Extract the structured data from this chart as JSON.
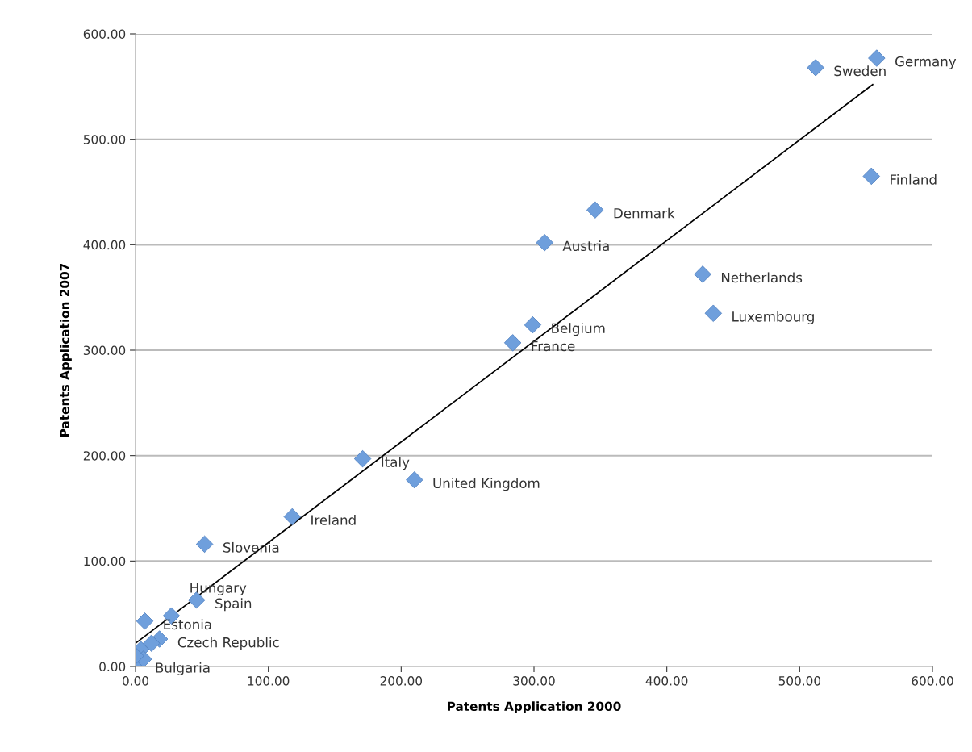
{
  "chart_data": {
    "type": "scatter",
    "xlabel": "Patents Application 2000",
    "ylabel": "Patents Application 2007",
    "xlim": [
      0,
      600
    ],
    "ylim": [
      0,
      600
    ],
    "xticks": [
      {
        "value": 0,
        "label": "0.00"
      },
      {
        "value": 100,
        "label": "100.00"
      },
      {
        "value": 200,
        "label": "200.00"
      },
      {
        "value": 300,
        "label": "300.00"
      },
      {
        "value": 400,
        "label": "400.00"
      },
      {
        "value": 500,
        "label": "500.00"
      },
      {
        "value": 600,
        "label": "600.00"
      }
    ],
    "yticks": [
      {
        "value": 0,
        "label": "0.00"
      },
      {
        "value": 100,
        "label": "100.00"
      },
      {
        "value": 200,
        "label": "200.00"
      },
      {
        "value": 300,
        "label": "300.00"
      },
      {
        "value": 400,
        "label": "400.00"
      },
      {
        "value": 500,
        "label": "500.00"
      },
      {
        "value": 600,
        "label": "600.00"
      }
    ],
    "grid": "y",
    "series": [
      {
        "marker": "diamond",
        "color": "#6f9fdc",
        "x": [
          558,
          512,
          554,
          346,
          308,
          427,
          435,
          299,
          284,
          171,
          210,
          118,
          52,
          46,
          7,
          27,
          18,
          1,
          12,
          4,
          6,
          0
        ],
        "values": [
          577,
          568,
          465,
          433,
          402,
          372,
          335,
          324,
          307,
          197,
          177,
          142,
          116,
          63,
          43,
          48,
          26,
          2,
          22,
          16,
          7,
          10
        ]
      },
      {
        "type": "line",
        "marker": "none",
        "color": "#000000",
        "x": [
          0,
          555
        ],
        "values": [
          22,
          552
        ]
      }
    ],
    "annotations": [
      {
        "text": "Germany",
        "x": 558,
        "y": 577
      },
      {
        "text": "Sweden",
        "x": 512,
        "y": 568
      },
      {
        "text": "Finland",
        "x": 554,
        "y": 465
      },
      {
        "text": "Denmark",
        "x": 346,
        "y": 433
      },
      {
        "text": "Austria",
        "x": 308,
        "y": 402
      },
      {
        "text": "Netherlands",
        "x": 427,
        "y": 372
      },
      {
        "text": "Luxembourg",
        "x": 435,
        "y": 335
      },
      {
        "text": "Belgium",
        "x": 299,
        "y": 324
      },
      {
        "text": "France",
        "x": 284,
        "y": 307
      },
      {
        "text": "Italy",
        "x": 171,
        "y": 197
      },
      {
        "text": "United Kingdom",
        "x": 210,
        "y": 177
      },
      {
        "text": "Ireland",
        "x": 118,
        "y": 142
      },
      {
        "text": "Slovenia",
        "x": 52,
        "y": 116
      },
      {
        "text": "Spain",
        "x": 46,
        "y": 63
      },
      {
        "text": "Estonia",
        "x": 7,
        "y": 43
      },
      {
        "text": "Hungary",
        "x": 27,
        "y": 48
      },
      {
        "text": "Czech Republic",
        "x": 18,
        "y": 26
      },
      {
        "text": "Bulgaria",
        "x": 1,
        "y": 2
      }
    ]
  }
}
